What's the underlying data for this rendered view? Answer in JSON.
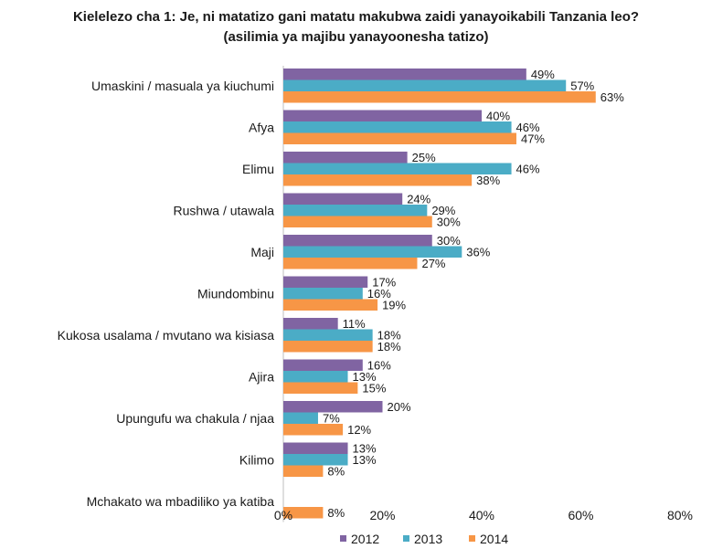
{
  "chart_data": {
    "type": "bar",
    "orientation": "horizontal",
    "title": "Kielelezo cha 1: Je, ni matatizo gani matatu makubwa zaidi yanayoikabili Tanzania leo?",
    "subtitle": "(asilimia ya majibu yanayoonesha tatizo)",
    "xlabel": "",
    "ylabel": "",
    "xlim": [
      0,
      80
    ],
    "ticks": [
      "0%",
      "20%",
      "40%",
      "60%",
      "80%"
    ],
    "tick_values": [
      0,
      20,
      40,
      60,
      80
    ],
    "grid": false,
    "legend_position": "bottom",
    "categories": [
      "Umaskini / masuala ya kiuchumi",
      "Afya",
      "Elimu",
      "Rushwa / utawala",
      "Maji",
      "Miundombinu",
      "Kukosa usalama / mvutano wa kisiasa",
      "Ajira",
      "Upungufu wa chakula / njaa",
      "Kilimo",
      "Mchakato wa mbadiliko ya katiba"
    ],
    "series": [
      {
        "name": "2012",
        "color": "#8064a2",
        "values": [
          49,
          40,
          25,
          24,
          30,
          17,
          11,
          16,
          20,
          13,
          null
        ],
        "labels": [
          "49%",
          "40%",
          "25%",
          "24%",
          "30%",
          "17%",
          "11%",
          "16%",
          "20%",
          "13%",
          ""
        ]
      },
      {
        "name": "2013",
        "color": "#4bacc6",
        "values": [
          57,
          46,
          46,
          29,
          36,
          16,
          18,
          13,
          7,
          13,
          null
        ],
        "labels": [
          "57%",
          "46%",
          "46%",
          "29%",
          "36%",
          "16%",
          "18%",
          "13%",
          "7%",
          "13%",
          ""
        ]
      },
      {
        "name": "2014",
        "color": "#f79646",
        "values": [
          63,
          47,
          38,
          30,
          27,
          19,
          18,
          15,
          12,
          8,
          8
        ],
        "labels": [
          "63%",
          "47%",
          "38%",
          "30%",
          "27%",
          "19%",
          "18%",
          "15%",
          "12%",
          "8%",
          "8%"
        ]
      }
    ]
  }
}
